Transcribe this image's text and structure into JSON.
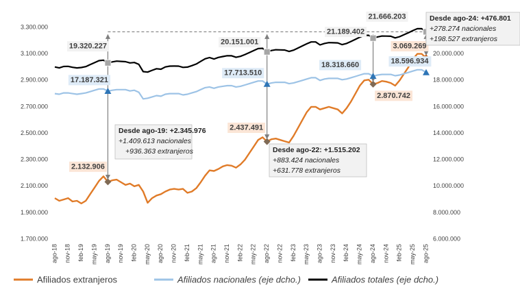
{
  "chart_data": {
    "type": "line",
    "categories": [
      "ago-18",
      null,
      null,
      "nov-18",
      null,
      null,
      "feb-19",
      null,
      null,
      "may-19",
      null,
      null,
      "ago-19",
      null,
      null,
      "nov-19",
      null,
      null,
      "feb-20",
      null,
      null,
      "may-20",
      null,
      null,
      "ago-20",
      null,
      null,
      "nov-20",
      null,
      null,
      "feb-21",
      null,
      null,
      "may-21",
      null,
      null,
      "ago-21",
      null,
      null,
      "nov-21",
      null,
      null,
      "feb-22",
      null,
      null,
      "may-22",
      null,
      null,
      "ago-22",
      null,
      null,
      "nov-22",
      null,
      null,
      "feb-23",
      null,
      null,
      "may-23",
      null,
      null,
      "ago-23",
      null,
      null,
      "nov-23",
      null,
      null,
      "feb-24",
      null,
      null,
      "may-24",
      null,
      null,
      "ago-24",
      null,
      null,
      "nov-24",
      null,
      null,
      "feb-25",
      null,
      null,
      "may-25",
      null,
      null,
      "ago-25"
    ],
    "ylim": [
      1700000,
      3300000
    ],
    "yticks": [
      {
        "value": 1700000,
        "label": "1.700.000"
      },
      {
        "value": 1900000,
        "label": "1.900.000"
      },
      {
        "value": 2100000,
        "label": "2.100.000"
      },
      {
        "value": 2300000,
        "label": "2.300.000"
      },
      {
        "value": 2500000,
        "label": "2.500.000"
      },
      {
        "value": 2700000,
        "label": "2.700.000"
      },
      {
        "value": 2900000,
        "label": "2.900.000"
      },
      {
        "value": 3100000,
        "label": "3.100.000"
      },
      {
        "value": 3300000,
        "label": "3.300.000"
      }
    ],
    "y2lim": [
      6000000,
      22000000
    ],
    "y2ticks": [
      {
        "value": 6000000,
        "label": "6.000.000"
      },
      {
        "value": 8000000,
        "label": "8.000.000"
      },
      {
        "value": 10000000,
        "label": "10.000.000"
      },
      {
        "value": 12000000,
        "label": "12.000.000"
      },
      {
        "value": 14000000,
        "label": "14.000.000"
      },
      {
        "value": 16000000,
        "label": "16.000.000"
      },
      {
        "value": 18000000,
        "label": "18.000.000"
      },
      {
        "value": 20000000,
        "label": "20.000.000"
      }
    ],
    "legend": "bottom",
    "series": [
      {
        "name": "Afiliados extranjeros",
        "color": "#e07b28",
        "values": [
          2010000,
          1990000,
          2000000,
          2010000,
          1985000,
          1990000,
          1970000,
          1990000,
          2040000,
          2090000,
          2140000,
          2175000,
          2132906,
          2145000,
          2150000,
          2130000,
          2110000,
          2120000,
          2100000,
          2110000,
          2060000,
          1975000,
          2010000,
          2030000,
          2040000,
          2060000,
          2075000,
          2080000,
          2075000,
          2080000,
          2050000,
          2060000,
          2085000,
          2130000,
          2180000,
          2220000,
          2215000,
          2230000,
          2250000,
          2260000,
          2255000,
          2240000,
          2265000,
          2300000,
          2350000,
          2400000,
          2450000,
          2470000,
          2437491,
          2455000,
          2460000,
          2450000,
          2440000,
          2430000,
          2480000,
          2540000,
          2600000,
          2660000,
          2700000,
          2700000,
          2680000,
          2690000,
          2700000,
          2690000,
          2680000,
          2650000,
          2690000,
          2740000,
          2800000,
          2860000,
          2900000,
          2905000,
          2870742,
          2880000,
          2895000,
          2890000,
          2880000,
          2860000,
          2900000,
          2950000,
          3000000,
          3060000,
          3100000,
          3100000,
          3069269
        ],
        "value_labels": [
          null,
          null,
          null,
          null,
          null,
          null,
          null,
          null,
          null,
          null,
          null,
          null,
          "2.132.906",
          null,
          null,
          null,
          null,
          null,
          null,
          null,
          null,
          null,
          null,
          null,
          null,
          null,
          null,
          null,
          null,
          null,
          null,
          null,
          null,
          null,
          null,
          null,
          null,
          null,
          null,
          null,
          null,
          null,
          null,
          null,
          null,
          null,
          null,
          null,
          "2.437.491",
          null,
          null,
          null,
          null,
          null,
          null,
          null,
          null,
          null,
          null,
          null,
          null,
          null,
          null,
          null,
          null,
          null,
          null,
          null,
          null,
          null,
          null,
          null,
          "2.870.742",
          null,
          null,
          null,
          null,
          null,
          null,
          null,
          null,
          null,
          null,
          null,
          "3.069.269"
        ]
      },
      {
        "name": "Afiliados nacionales (eje dcho.)",
        "color": "#9dc3e6",
        "axis": "y2",
        "values": [
          17000000,
          16950000,
          17050000,
          17050000,
          17000000,
          16950000,
          17000000,
          17050000,
          17150000,
          17250000,
          17350000,
          17350000,
          17187321,
          17250000,
          17300000,
          17300000,
          17300000,
          17200000,
          17250000,
          17100000,
          16600000,
          16650000,
          16750000,
          16850000,
          16800000,
          16950000,
          17000000,
          17000000,
          17000000,
          16900000,
          16950000,
          17050000,
          17150000,
          17300000,
          17450000,
          17500000,
          17400000,
          17500000,
          17550000,
          17600000,
          17600000,
          17500000,
          17550000,
          17650000,
          17750000,
          17850000,
          17950000,
          17950000,
          17713510,
          17800000,
          17850000,
          17850000,
          17850000,
          17750000,
          17800000,
          17900000,
          18000000,
          18100000,
          18200000,
          18200000,
          18000000,
          18100000,
          18150000,
          18150000,
          18150000,
          18050000,
          18100000,
          18200000,
          18300000,
          18400000,
          18500000,
          18500000,
          18318660,
          18400000,
          18450000,
          18450000,
          18450000,
          18350000,
          18400000,
          18500000,
          18600000,
          18700000,
          18800000,
          18800000,
          18596934
        ],
        "value_labels": [
          null,
          null,
          null,
          null,
          null,
          null,
          null,
          null,
          null,
          null,
          null,
          null,
          "17.187.321",
          null,
          null,
          null,
          null,
          null,
          null,
          null,
          null,
          null,
          null,
          null,
          null,
          null,
          null,
          null,
          null,
          null,
          null,
          null,
          null,
          null,
          null,
          null,
          null,
          null,
          null,
          null,
          null,
          null,
          null,
          null,
          null,
          null,
          null,
          null,
          "17.713.510",
          null,
          null,
          null,
          null,
          null,
          null,
          null,
          null,
          null,
          null,
          null,
          null,
          null,
          null,
          null,
          null,
          null,
          null,
          null,
          null,
          null,
          null,
          null,
          "18.318.660",
          null,
          null,
          null,
          null,
          null,
          null,
          null,
          null,
          null,
          null,
          null,
          "18.596.934"
        ]
      },
      {
        "name": "Afiliados totales (eje dcho.)",
        "color": "#000000",
        "axis": "y2",
        "values": [
          19010000,
          18940000,
          19050000,
          19060000,
          18985000,
          18940000,
          18970000,
          19040000,
          19190000,
          19340000,
          19490000,
          19525000,
          19320227,
          19395000,
          19450000,
          19430000,
          19410000,
          19320000,
          19350000,
          19210000,
          18660000,
          18625000,
          18760000,
          18880000,
          18840000,
          19010000,
          19075000,
          19080000,
          19075000,
          18980000,
          19000000,
          19110000,
          19235000,
          19430000,
          19630000,
          19720000,
          19615000,
          19730000,
          19800000,
          19860000,
          19855000,
          19740000,
          19815000,
          19950000,
          20100000,
          20250000,
          20400000,
          20420000,
          20151001,
          20255000,
          20310000,
          20300000,
          20290000,
          20180000,
          20280000,
          20440000,
          20600000,
          20760000,
          20900000,
          20900000,
          20680000,
          20790000,
          20850000,
          20840000,
          20830000,
          20700000,
          20790000,
          20940000,
          21100000,
          21260000,
          21400000,
          21405000,
          21189402,
          21280000,
          21345000,
          21340000,
          21330000,
          21210000,
          21300000,
          21450000,
          21600000,
          21760000,
          21900000,
          21900000,
          21666203
        ],
        "value_labels": [
          null,
          null,
          null,
          null,
          null,
          null,
          null,
          null,
          null,
          null,
          null,
          null,
          "19.320.227",
          null,
          null,
          null,
          null,
          null,
          null,
          null,
          null,
          null,
          null,
          null,
          null,
          null,
          null,
          null,
          null,
          null,
          null,
          null,
          null,
          null,
          null,
          null,
          null,
          null,
          null,
          null,
          null,
          null,
          null,
          null,
          null,
          null,
          null,
          null,
          "20.151.001",
          null,
          null,
          null,
          null,
          null,
          null,
          null,
          null,
          null,
          null,
          null,
          null,
          null,
          null,
          null,
          null,
          null,
          null,
          null,
          null,
          null,
          null,
          null,
          "21.189.402",
          null,
          null,
          null,
          null,
          null,
          null,
          null,
          null,
          null,
          null,
          null,
          "21.666.203"
        ]
      }
    ],
    "annotations": [
      {
        "lines": [
          "Desde ago-19: +2.345.976",
          "+1.409.613 nacionales",
          "+936.363 extranjeros"
        ]
      },
      {
        "lines": [
          "Desde ago-22: +1.515.202",
          "+883.424 nacionales",
          "+631.778 extranjeros"
        ]
      },
      {
        "lines": [
          "Desde ago-24: +476.801",
          "+278.274 nacionales",
          "+198.527 extranjeros"
        ]
      }
    ]
  }
}
